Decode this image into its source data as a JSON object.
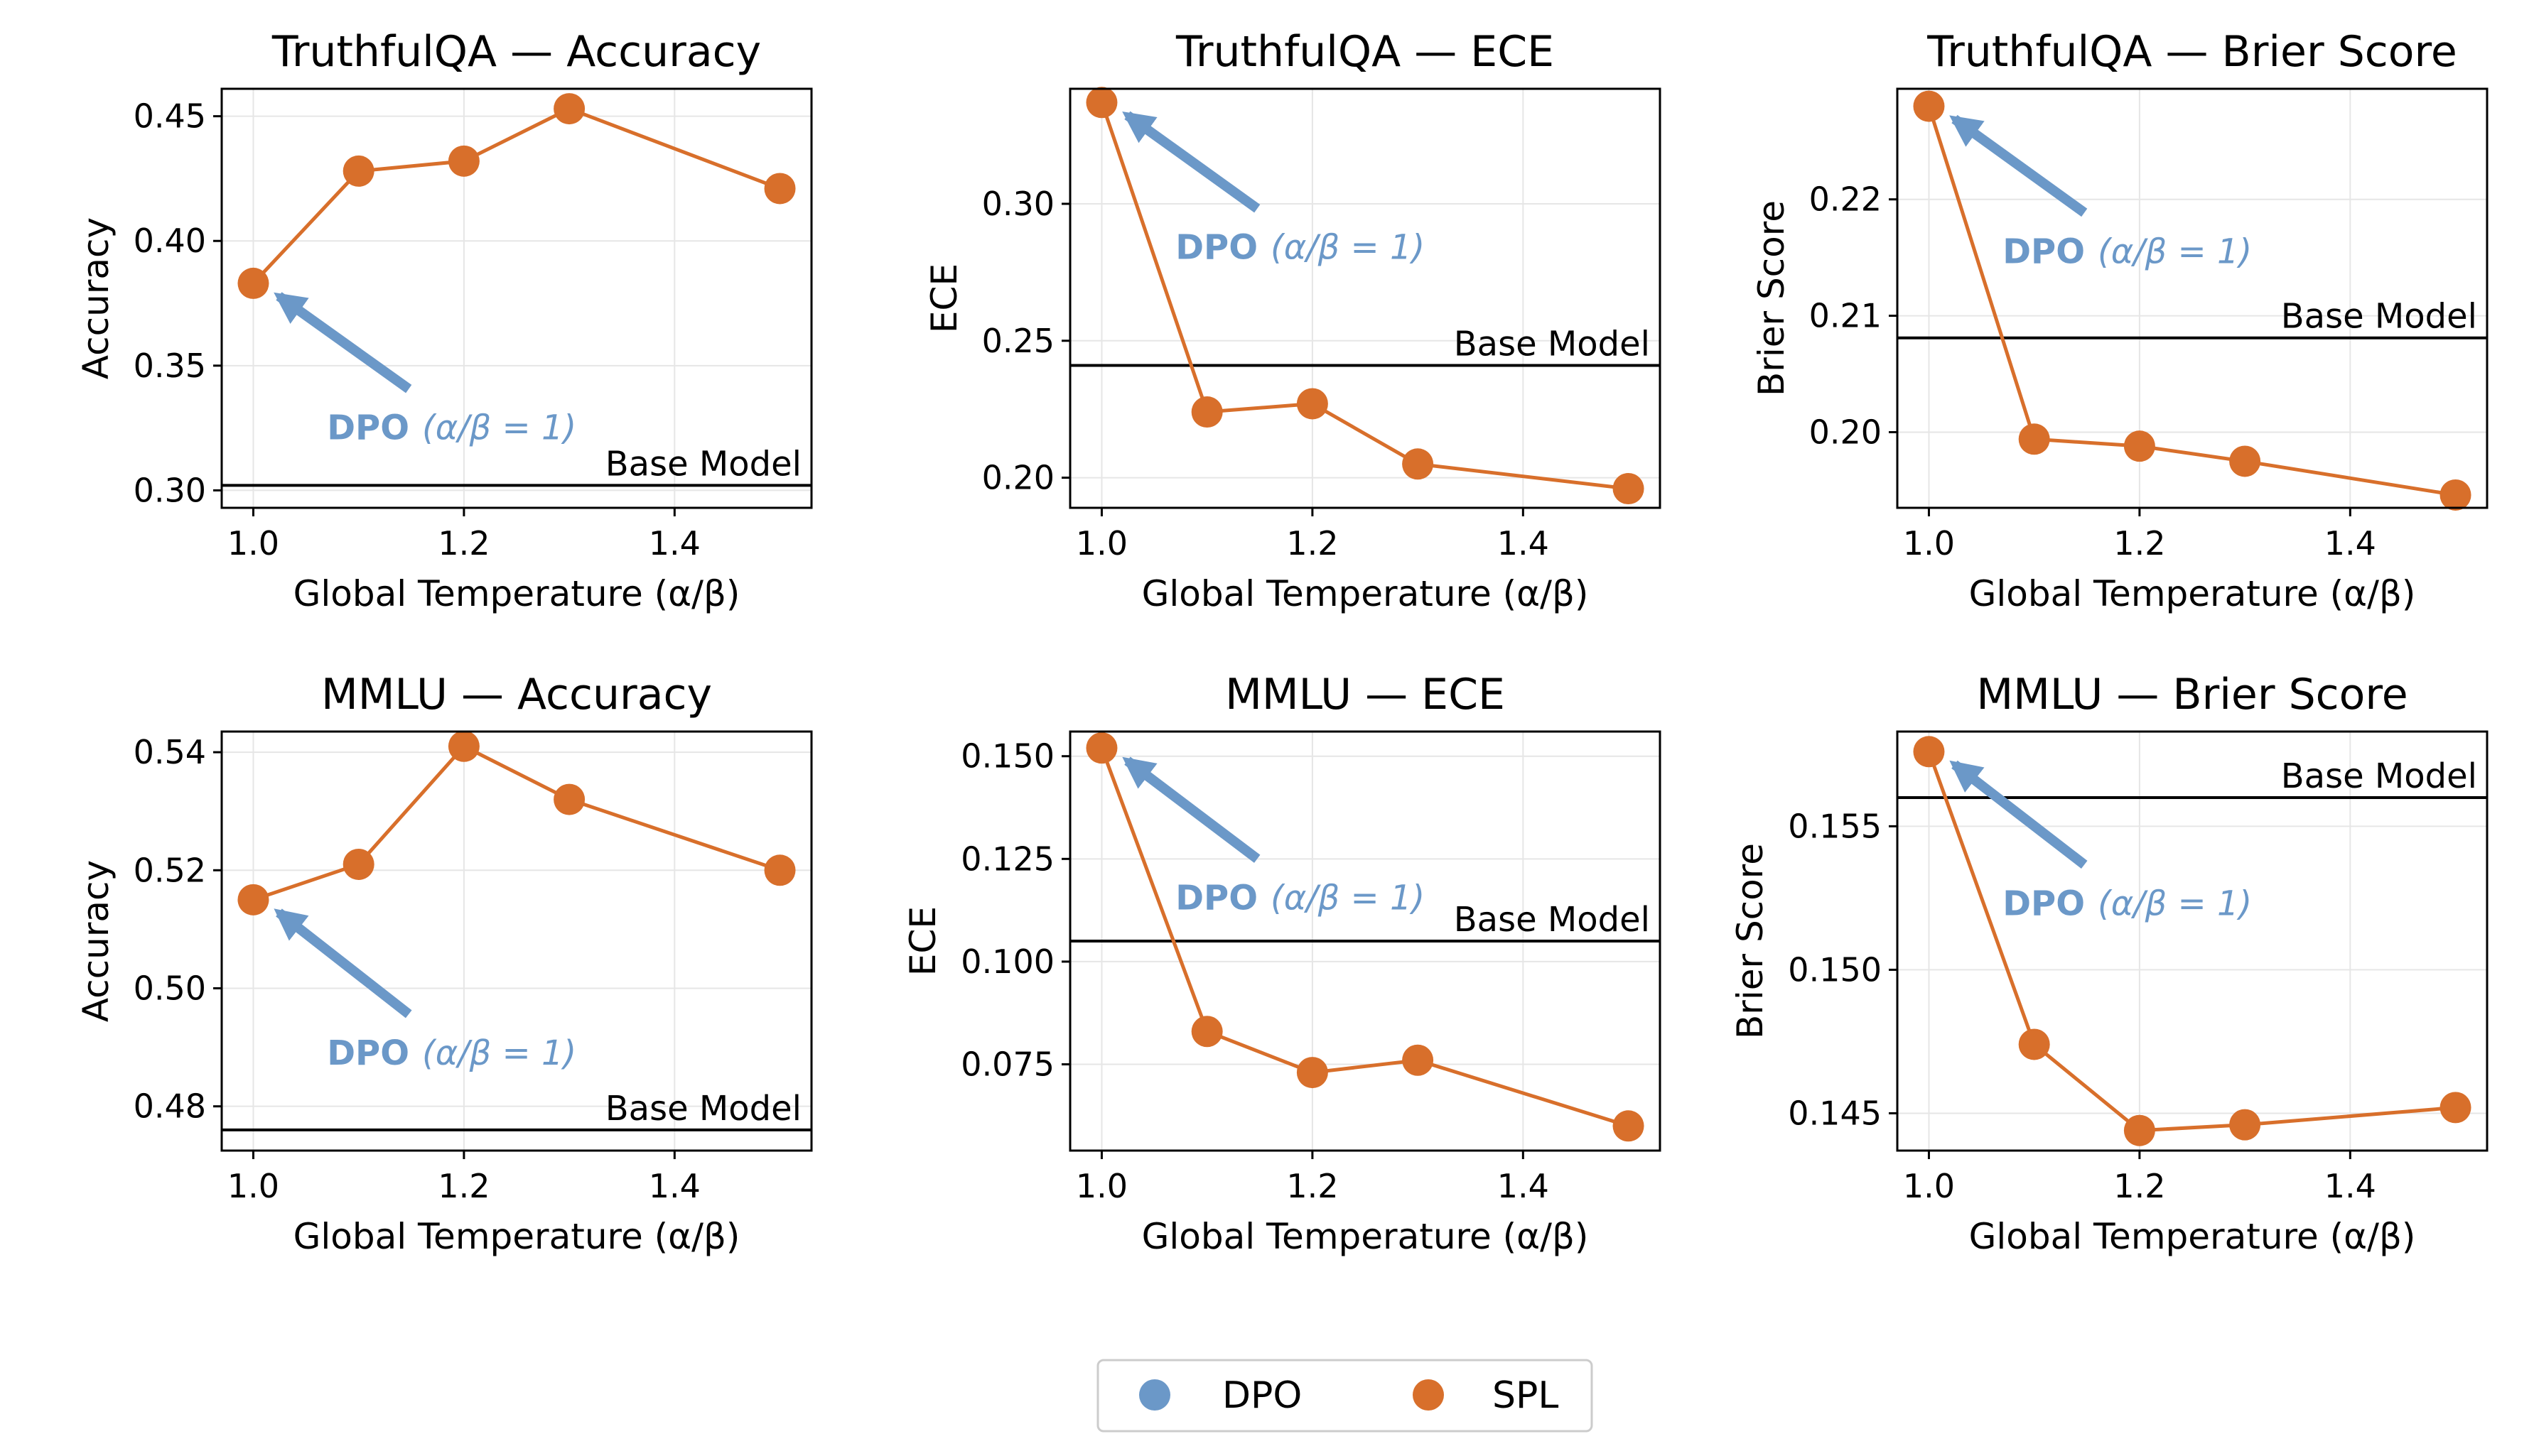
{
  "colors": {
    "dpo": "#6b98c8",
    "spl": "#d86f2b",
    "base_line": "#000000",
    "grid": "#e6e6e6"
  },
  "legend": {
    "placement": "bottom-center",
    "entries": [
      {
        "label": "DPO",
        "color": "#6b98c8"
      },
      {
        "label": "SPL",
        "color": "#d86f2b"
      }
    ]
  },
  "chart_data": [
    {
      "type": "line",
      "title": "TruthfulQA — Accuracy",
      "xlabel": "Global Temperature (α/β)",
      "ylabel": "Accuracy",
      "xlim": [
        0.97,
        1.53
      ],
      "ylim": [
        0.293,
        0.461
      ],
      "xticks": [
        1.0,
        1.2,
        1.4
      ],
      "xtick_labels": [
        "1.0",
        "1.2",
        "1.4"
      ],
      "yticks": [
        0.3,
        0.35,
        0.4,
        0.45
      ],
      "ytick_labels": [
        "0.30",
        "0.35",
        "0.40",
        "0.45"
      ],
      "grid": true,
      "series": [
        {
          "name": "SPL",
          "x": [
            1.0,
            1.1,
            1.2,
            1.3,
            1.5
          ],
          "y": [
            0.383,
            0.428,
            0.432,
            0.453,
            0.421
          ]
        }
      ],
      "baseline": {
        "label": "Base Model",
        "y": 0.302
      },
      "annotation": {
        "bold": "DPO",
        "math": "(α/β = 1)",
        "point": [
          1.0,
          0.383
        ],
        "text_at": [
          1.07,
          0.325
        ]
      }
    },
    {
      "type": "line",
      "title": "TruthfulQA — ECE",
      "xlabel": "Global Temperature (α/β)",
      "ylabel": "ECE",
      "xlim": [
        0.97,
        1.53
      ],
      "ylim": [
        0.189,
        0.342
      ],
      "xticks": [
        1.0,
        1.2,
        1.4
      ],
      "xtick_labels": [
        "1.0",
        "1.2",
        "1.4"
      ],
      "yticks": [
        0.2,
        0.25,
        0.3
      ],
      "ytick_labels": [
        "0.20",
        "0.25",
        "0.30"
      ],
      "grid": true,
      "series": [
        {
          "name": "SPL",
          "x": [
            1.0,
            1.1,
            1.2,
            1.3,
            1.5
          ],
          "y": [
            0.337,
            0.224,
            0.227,
            0.205,
            0.196
          ]
        }
      ],
      "baseline": {
        "label": "Base Model",
        "y": 0.241
      },
      "annotation": {
        "bold": "DPO",
        "math": "(α/β = 1)",
        "point": [
          1.0,
          0.337
        ],
        "text_at": [
          1.07,
          0.284
        ]
      }
    },
    {
      "type": "line",
      "title": "TruthfulQA — Brier Score",
      "xlabel": "Global Temperature (α/β)",
      "ylabel": "Brier Score",
      "xlim": [
        0.97,
        1.53
      ],
      "ylim": [
        0.1935,
        0.2295
      ],
      "xticks": [
        1.0,
        1.2,
        1.4
      ],
      "xtick_labels": [
        "1.0",
        "1.2",
        "1.4"
      ],
      "yticks": [
        0.2,
        0.21,
        0.22
      ],
      "ytick_labels": [
        "0.20",
        "0.21",
        "0.22"
      ],
      "grid": true,
      "series": [
        {
          "name": "SPL",
          "x": [
            1.0,
            1.1,
            1.2,
            1.3,
            1.5
          ],
          "y": [
            0.228,
            0.1994,
            0.1988,
            0.1975,
            0.1946
          ]
        }
      ],
      "baseline": {
        "label": "Base Model",
        "y": 0.2081
      },
      "annotation": {
        "bold": "DPO",
        "math": "(α/β = 1)",
        "point": [
          1.0,
          0.228
        ],
        "text_at": [
          1.07,
          0.2155
        ]
      }
    },
    {
      "type": "line",
      "title": "MMLU — Accuracy",
      "xlabel": "Global Temperature (α/β)",
      "ylabel": "Accuracy",
      "xlim": [
        0.97,
        1.53
      ],
      "ylim": [
        0.4725,
        0.5435
      ],
      "xticks": [
        1.0,
        1.2,
        1.4
      ],
      "xtick_labels": [
        "1.0",
        "1.2",
        "1.4"
      ],
      "yticks": [
        0.48,
        0.5,
        0.52,
        0.54
      ],
      "ytick_labels": [
        "0.48",
        "0.50",
        "0.52",
        "0.54"
      ],
      "grid": true,
      "series": [
        {
          "name": "SPL",
          "x": [
            1.0,
            1.1,
            1.2,
            1.3,
            1.5
          ],
          "y": [
            0.515,
            0.521,
            0.541,
            0.532,
            0.52
          ]
        }
      ],
      "baseline": {
        "label": "Base Model",
        "y": 0.476
      },
      "annotation": {
        "bold": "DPO",
        "math": "(α/β = 1)",
        "point": [
          1.0,
          0.515
        ],
        "text_at": [
          1.07,
          0.489
        ]
      }
    },
    {
      "type": "line",
      "title": "MMLU — ECE",
      "xlabel": "Global Temperature (α/β)",
      "ylabel": "ECE",
      "xlim": [
        0.97,
        1.53
      ],
      "ylim": [
        0.054,
        0.156
      ],
      "xticks": [
        1.0,
        1.2,
        1.4
      ],
      "xtick_labels": [
        "1.0",
        "1.2",
        "1.4"
      ],
      "yticks": [
        0.075,
        0.1,
        0.125,
        0.15
      ],
      "ytick_labels": [
        "0.075",
        "0.100",
        "0.125",
        "0.150"
      ],
      "grid": true,
      "series": [
        {
          "name": "SPL",
          "x": [
            1.0,
            1.1,
            1.2,
            1.3,
            1.5
          ],
          "y": [
            0.152,
            0.083,
            0.073,
            0.076,
            0.06
          ]
        }
      ],
      "baseline": {
        "label": "Base Model",
        "y": 0.105
      },
      "annotation": {
        "bold": "DPO",
        "math": "(α/β = 1)",
        "point": [
          1.0,
          0.152
        ],
        "text_at": [
          1.07,
          0.1155
        ]
      }
    },
    {
      "type": "line",
      "title": "MMLU — Brier Score",
      "xlabel": "Global Temperature (α/β)",
      "ylabel": "Brier Score",
      "xlim": [
        0.97,
        1.53
      ],
      "ylim": [
        0.1437,
        0.1583
      ],
      "xticks": [
        1.0,
        1.2,
        1.4
      ],
      "xtick_labels": [
        "1.0",
        "1.2",
        "1.4"
      ],
      "yticks": [
        0.145,
        0.15,
        0.155
      ],
      "ytick_labels": [
        "0.145",
        "0.150",
        "0.155"
      ],
      "grid": true,
      "series": [
        {
          "name": "SPL",
          "x": [
            1.0,
            1.1,
            1.2,
            1.3,
            1.5
          ],
          "y": [
            0.1576,
            0.1474,
            0.1444,
            0.1446,
            0.1452
          ]
        }
      ],
      "baseline": {
        "label": "Base Model",
        "y": 0.156
      },
      "annotation": {
        "bold": "DPO",
        "math": "(α/β = 1)",
        "point": [
          1.0,
          0.1576
        ],
        "text_at": [
          1.07,
          0.1523
        ]
      }
    }
  ]
}
